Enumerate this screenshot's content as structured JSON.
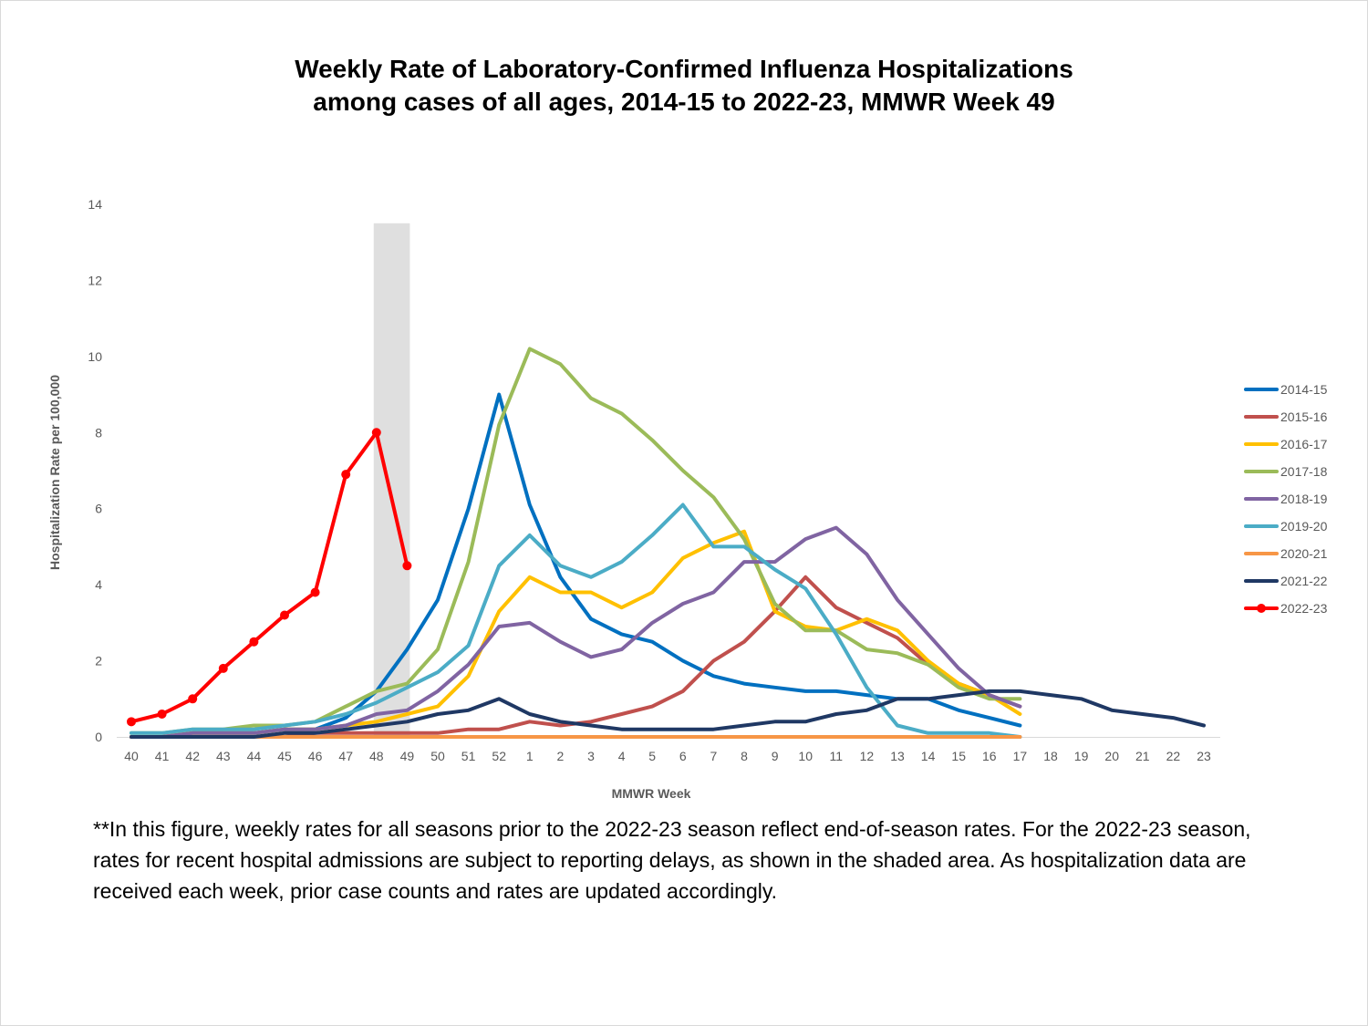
{
  "title": {
    "line1": "Weekly Rate of Laboratory-Confirmed Influenza Hospitalizations",
    "line2": "among cases of all ages, 2014-15 to 2022-23, MMWR Week 49"
  },
  "footnote": "**In this figure, weekly rates for all seasons prior to the 2022-23 season reflect end-of-season rates. For the 2022-23 season, rates for recent hospital admissions are subject to reporting delays, as shown in the shaded area. As hospitalization data are received each week, prior case counts and rates are updated accordingly.",
  "chart_data": {
    "type": "line",
    "xlabel": "MMWR Week",
    "ylabel": "Hospitalization Rate per 100,000",
    "ylim": [
      0,
      14
    ],
    "yticks": [
      0,
      2,
      4,
      6,
      8,
      10,
      12,
      14
    ],
    "grid": false,
    "legend_position": "right",
    "shaded_region": {
      "from": "48",
      "to": "49",
      "meaning": "reporting delay"
    },
    "categories": [
      "40",
      "41",
      "42",
      "43",
      "44",
      "45",
      "46",
      "47",
      "48",
      "49",
      "50",
      "51",
      "52",
      "1",
      "2",
      "3",
      "4",
      "5",
      "6",
      "7",
      "8",
      "9",
      "10",
      "11",
      "12",
      "13",
      "14",
      "15",
      "16",
      "17",
      "18",
      "19",
      "20",
      "21",
      "22",
      "23"
    ],
    "series": [
      {
        "name": "2014-15",
        "color": "#0070c0",
        "values": [
          0.0,
          0.0,
          0.1,
          0.1,
          0.1,
          0.2,
          0.2,
          0.5,
          1.2,
          2.3,
          3.6,
          6.0,
          9.0,
          6.1,
          4.2,
          3.1,
          2.7,
          2.5,
          2.0,
          1.6,
          1.4,
          1.3,
          1.2,
          1.2,
          1.1,
          1.0,
          1.0,
          0.7,
          0.5,
          0.3,
          null,
          null,
          null,
          null,
          null,
          null
        ]
      },
      {
        "name": "2015-16",
        "color": "#c0504d",
        "values": [
          0.0,
          0.0,
          0.0,
          0.0,
          0.0,
          0.0,
          0.1,
          0.1,
          0.1,
          0.1,
          0.1,
          0.2,
          0.2,
          0.4,
          0.3,
          0.4,
          0.6,
          0.8,
          1.2,
          2.0,
          2.5,
          3.3,
          4.2,
          3.4,
          3.0,
          2.6,
          1.9,
          1.4,
          1.1,
          0.8,
          null,
          null,
          null,
          null,
          null,
          null
        ]
      },
      {
        "name": "2016-17",
        "color": "#ffc000",
        "values": [
          0.0,
          0.0,
          0.1,
          0.1,
          0.1,
          0.2,
          0.2,
          0.3,
          0.4,
          0.6,
          0.8,
          1.6,
          3.3,
          4.2,
          3.8,
          3.8,
          3.4,
          3.8,
          4.7,
          5.1,
          5.4,
          3.3,
          2.9,
          2.8,
          3.1,
          2.8,
          2.0,
          1.4,
          1.1,
          0.6,
          null,
          null,
          null,
          null,
          null,
          null
        ]
      },
      {
        "name": "2017-18",
        "color": "#9bbb59",
        "values": [
          0.1,
          0.1,
          0.2,
          0.2,
          0.3,
          0.3,
          0.4,
          0.8,
          1.2,
          1.4,
          2.3,
          4.6,
          8.2,
          10.2,
          9.8,
          8.9,
          8.5,
          7.8,
          7.0,
          6.3,
          5.2,
          3.5,
          2.8,
          2.8,
          2.3,
          2.2,
          1.9,
          1.3,
          1.0,
          1.0,
          null,
          null,
          null,
          null,
          null,
          null
        ]
      },
      {
        "name": "2018-19",
        "color": "#8064a2",
        "values": [
          0.0,
          0.0,
          0.1,
          0.1,
          0.1,
          0.2,
          0.2,
          0.3,
          0.6,
          0.7,
          1.2,
          1.9,
          2.9,
          3.0,
          2.5,
          2.1,
          2.3,
          3.0,
          3.5,
          3.8,
          4.6,
          4.6,
          5.2,
          5.5,
          4.8,
          3.6,
          2.7,
          1.8,
          1.1,
          0.8,
          null,
          null,
          null,
          null,
          null,
          null
        ]
      },
      {
        "name": "2019-20",
        "color": "#4bacc6",
        "values": [
          0.1,
          0.1,
          0.2,
          0.2,
          0.2,
          0.3,
          0.4,
          0.6,
          0.9,
          1.3,
          1.7,
          2.4,
          4.5,
          5.3,
          4.5,
          4.2,
          4.6,
          5.3,
          6.1,
          5.0,
          5.0,
          4.4,
          3.9,
          2.7,
          1.3,
          0.3,
          0.1,
          0.1,
          0.1,
          0.0,
          null,
          null,
          null,
          null,
          null,
          null
        ]
      },
      {
        "name": "2020-21",
        "color": "#f79646",
        "values": [
          0.0,
          0.0,
          0.0,
          0.0,
          0.0,
          0.0,
          0.0,
          0.0,
          0.0,
          0.0,
          0.0,
          0.0,
          0.0,
          0.0,
          0.0,
          0.0,
          0.0,
          0.0,
          0.0,
          0.0,
          0.0,
          0.0,
          0.0,
          0.0,
          0.0,
          0.0,
          0.0,
          0.0,
          0.0,
          0.0,
          null,
          null,
          null,
          null,
          null,
          null
        ]
      },
      {
        "name": "2021-22",
        "color": "#1f3864",
        "values": [
          0.0,
          0.0,
          0.0,
          0.0,
          0.0,
          0.1,
          0.1,
          0.2,
          0.3,
          0.4,
          0.6,
          0.7,
          1.0,
          0.6,
          0.4,
          0.3,
          0.2,
          0.2,
          0.2,
          0.2,
          0.3,
          0.4,
          0.4,
          0.6,
          0.7,
          1.0,
          1.0,
          1.1,
          1.2,
          1.2,
          1.1,
          1.0,
          0.7,
          0.6,
          0.5,
          0.3
        ]
      },
      {
        "name": "2022-23",
        "color": "#ff0000",
        "markers": true,
        "values": [
          0.4,
          0.6,
          1.0,
          1.8,
          2.5,
          3.2,
          3.8,
          6.9,
          8.0,
          4.5,
          null,
          null,
          null,
          null,
          null,
          null,
          null,
          null,
          null,
          null,
          null,
          null,
          null,
          null,
          null,
          null,
          null,
          null,
          null,
          null,
          null,
          null,
          null,
          null,
          null,
          null
        ]
      }
    ]
  }
}
